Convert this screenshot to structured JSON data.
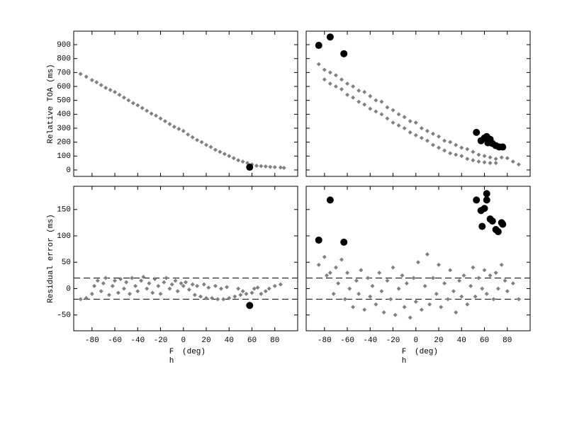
{
  "chart_data": [
    {
      "type": "scatter",
      "ylabel": "Relative TOA (ms)",
      "xlim": [
        -96,
        100
      ],
      "ylim": [
        -46,
        997
      ],
      "xticks": [
        -80,
        -60,
        -40,
        -20,
        0,
        20,
        40,
        60,
        80
      ],
      "yticks": [
        0,
        100,
        200,
        300,
        400,
        500,
        600,
        700,
        800,
        900
      ],
      "show_xtick_labels": false,
      "show_ytick_labels": true,
      "series": [
        {
          "color": "#808080",
          "marker": "diamond",
          "x": [
            -90,
            -85,
            -80,
            -76,
            -72,
            -68,
            -64,
            -60,
            -56,
            -52,
            -48,
            -44,
            -40,
            -36,
            -32,
            -28,
            -24,
            -20,
            -16,
            -12,
            -8,
            -4,
            0,
            4,
            8,
            12,
            16,
            20,
            24,
            28,
            32,
            36,
            40,
            44,
            48,
            52,
            56,
            60,
            64,
            68,
            72,
            76,
            80,
            85,
            88
          ],
          "values": [
            690,
            670,
            645,
            630,
            610,
            590,
            575,
            560,
            540,
            520,
            500,
            480,
            465,
            445,
            425,
            405,
            390,
            370,
            350,
            330,
            310,
            295,
            280,
            255,
            235,
            215,
            200,
            180,
            165,
            145,
            130,
            115,
            100,
            85,
            70,
            60,
            50,
            40,
            30,
            28,
            25,
            22,
            20,
            18,
            15
          ]
        },
        {
          "color": "#000000",
          "marker": "circle",
          "x": [
            58
          ],
          "values": [
            20
          ]
        }
      ]
    },
    {
      "type": "scatter",
      "xlim": [
        -96,
        100
      ],
      "ylim": [
        -46,
        997
      ],
      "xticks": [
        -80,
        -60,
        -40,
        -20,
        0,
        20,
        40,
        60,
        80
      ],
      "yticks": [
        0,
        100,
        200,
        300,
        400,
        500,
        600,
        700,
        800,
        900
      ],
      "show_xtick_labels": false,
      "show_ytick_labels": false,
      "series": [
        {
          "color": "#808080",
          "marker": "diamond",
          "x": [
            -85,
            -80,
            -80,
            -75,
            -75,
            -70,
            -70,
            -65,
            -65,
            -60,
            -60,
            -55,
            -55,
            -50,
            -50,
            -45,
            -45,
            -40,
            -40,
            -35,
            -35,
            -30,
            -30,
            -25,
            -25,
            -20,
            -20,
            -15,
            -15,
            -10,
            -10,
            -5,
            -5,
            0,
            0,
            5,
            5,
            10,
            10,
            15,
            15,
            20,
            20,
            25,
            25,
            30,
            30,
            35,
            35,
            40,
            40,
            45,
            45,
            50,
            50,
            55,
            55,
            60,
            60,
            65,
            65,
            70,
            70,
            75,
            80,
            85,
            90
          ],
          "values": [
            760,
            720,
            650,
            700,
            620,
            680,
            600,
            650,
            580,
            620,
            540,
            600,
            520,
            570,
            490,
            560,
            470,
            530,
            440,
            500,
            420,
            490,
            400,
            450,
            370,
            430,
            340,
            400,
            320,
            380,
            300,
            350,
            270,
            340,
            250,
            300,
            230,
            280,
            210,
            260,
            180,
            240,
            160,
            210,
            140,
            200,
            120,
            180,
            110,
            160,
            100,
            150,
            80,
            130,
            70,
            110,
            60,
            100,
            55,
            90,
            50,
            80,
            50,
            90,
            85,
            60,
            40
          ]
        },
        {
          "color": "#000000",
          "marker": "circle",
          "x": [
            -85,
            -75,
            -63,
            53,
            57,
            60,
            62,
            63,
            65,
            67,
            70,
            73,
            76
          ],
          "values": [
            895,
            955,
            835,
            270,
            210,
            230,
            240,
            195,
            220,
            190,
            175,
            165,
            165
          ]
        }
      ]
    },
    {
      "type": "scatter",
      "ylabel": "Residual error (ms)",
      "xlabel": {
        "symbol": "F",
        "subscript": "h",
        "unit": "(deg)"
      },
      "xlim": [
        -96,
        100
      ],
      "ylim": [
        -80,
        194
      ],
      "xticks": [
        -80,
        -60,
        -40,
        -20,
        0,
        20,
        40,
        60,
        80
      ],
      "yticks": [
        -50,
        0,
        50,
        100,
        150
      ],
      "show_xtick_labels": true,
      "show_ytick_labels": true,
      "hlines": [
        20,
        -20
      ],
      "series": [
        {
          "color": "#808080",
          "marker": "diamond",
          "x": [
            -90,
            -85,
            -80,
            -78,
            -75,
            -72,
            -70,
            -68,
            -65,
            -62,
            -60,
            -57,
            -55,
            -52,
            -50,
            -47,
            -45,
            -42,
            -40,
            -37,
            -35,
            -32,
            -30,
            -27,
            -25,
            -22,
            -20,
            -17,
            -15,
            -12,
            -10,
            -7,
            -5,
            -2,
            0,
            2,
            5,
            8,
            10,
            12,
            15,
            18,
            20,
            22,
            25,
            28,
            30,
            33,
            35,
            38,
            40,
            45,
            48,
            50,
            52,
            55,
            60,
            62,
            65,
            68,
            72,
            75,
            80,
            85
          ],
          "values": [
            -20,
            -18,
            -10,
            5,
            15,
            -5,
            10,
            20,
            -12,
            5,
            15,
            -8,
            18,
            0,
            12,
            -10,
            20,
            5,
            -5,
            15,
            22,
            0,
            10,
            -8,
            18,
            5,
            -10,
            12,
            20,
            0,
            8,
            15,
            -5,
            10,
            5,
            12,
            -2,
            8,
            -12,
            5,
            -15,
            8,
            -18,
            2,
            -18,
            5,
            -20,
            0,
            -20,
            3,
            -18,
            -15,
            0,
            -12,
            -5,
            -10,
            -8,
            0,
            2,
            -10,
            -5,
            0,
            5,
            8
          ]
        },
        {
          "color": "#000000",
          "marker": "circle",
          "x": [
            58
          ],
          "values": [
            -32
          ]
        }
      ]
    },
    {
      "type": "scatter",
      "xlabel": {
        "symbol": "F",
        "subscript": "h",
        "unit": "(deg)"
      },
      "xlim": [
        -96,
        100
      ],
      "ylim": [
        -80,
        194
      ],
      "xticks": [
        -80,
        -60,
        -40,
        -20,
        0,
        20,
        40,
        60,
        80
      ],
      "yticks": [
        -50,
        0,
        50,
        100,
        150
      ],
      "show_xtick_labels": true,
      "show_ytick_labels": false,
      "hlines": [
        20,
        -20
      ],
      "series": [
        {
          "color": "#808080",
          "marker": "diamond",
          "x": [
            -85,
            -80,
            -78,
            -75,
            -72,
            -70,
            -68,
            -65,
            -62,
            -60,
            -58,
            -55,
            -52,
            -50,
            -48,
            -45,
            -42,
            -40,
            -38,
            -35,
            -32,
            -30,
            -28,
            -25,
            -22,
            -20,
            -18,
            -15,
            -12,
            -10,
            -8,
            -5,
            -2,
            0,
            2,
            5,
            8,
            10,
            12,
            15,
            18,
            20,
            22,
            25,
            28,
            30,
            33,
            35,
            38,
            40,
            42,
            45,
            48,
            50,
            52,
            55,
            58,
            60,
            62,
            65,
            68,
            70,
            72,
            75,
            78,
            80,
            85,
            90
          ],
          "values": [
            45,
            60,
            25,
            30,
            -10,
            40,
            10,
            55,
            -20,
            30,
            0,
            -35,
            15,
            -10,
            35,
            -40,
            20,
            -15,
            5,
            -30,
            30,
            -5,
            -45,
            15,
            -20,
            40,
            -50,
            0,
            25,
            -35,
            10,
            -55,
            20,
            -25,
            50,
            -40,
            5,
            65,
            -30,
            20,
            -10,
            45,
            -35,
            10,
            -20,
            35,
            -5,
            -45,
            15,
            -15,
            25,
            -30,
            5,
            40,
            -15,
            20,
            0,
            35,
            -10,
            25,
            -20,
            30,
            0,
            45,
            15,
            -5,
            10,
            -20
          ]
        },
        {
          "color": "#000000",
          "marker": "circle",
          "x": [
            -85,
            -75,
            -63,
            53,
            57,
            58,
            60,
            62,
            62,
            65,
            67,
            70,
            72,
            75,
            76
          ],
          "values": [
            92,
            168,
            88,
            168,
            148,
            118,
            152,
            168,
            180,
            132,
            128,
            112,
            108,
            125,
            122
          ]
        }
      ]
    }
  ]
}
